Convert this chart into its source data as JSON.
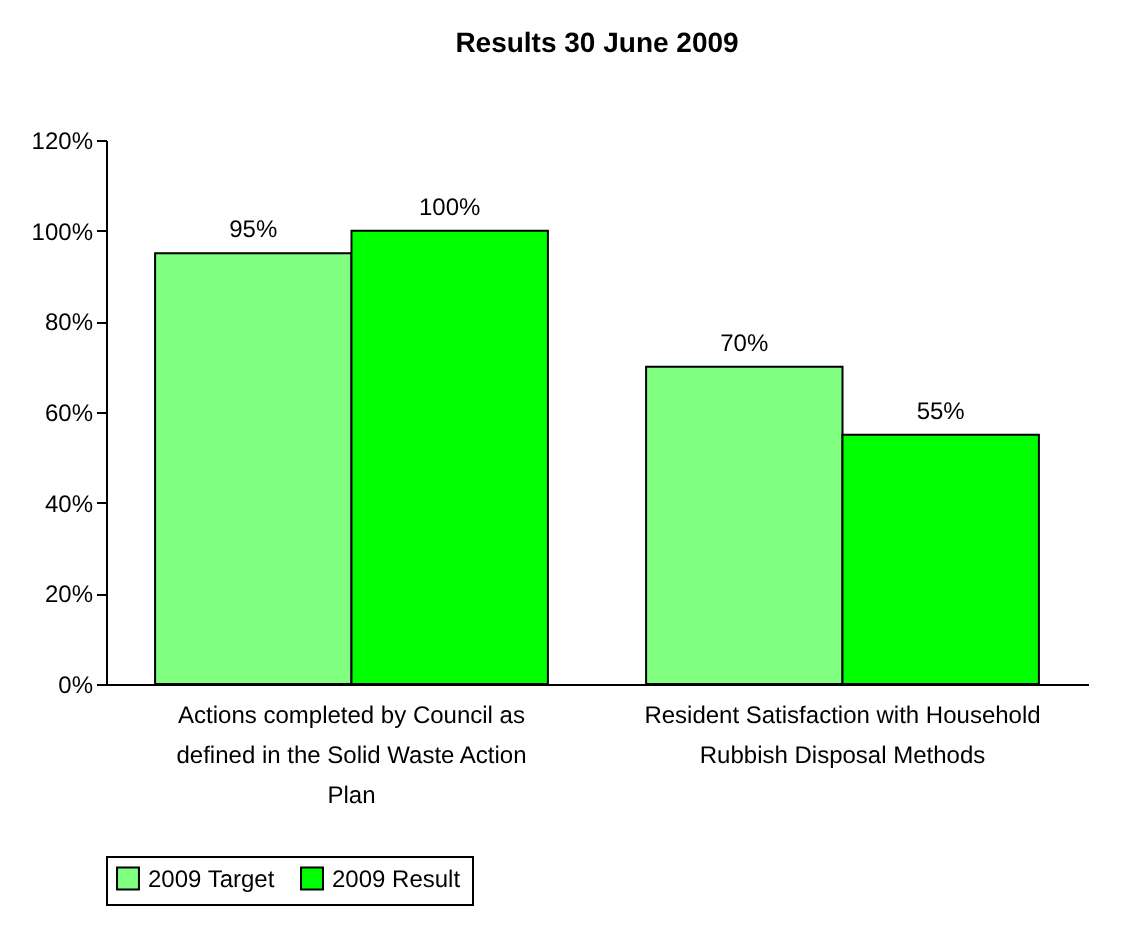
{
  "chart_data": {
    "type": "bar",
    "title": "Results 30 June 2009",
    "categories": [
      "Actions completed by Council as defined in the Solid Waste Action Plan",
      "Resident Satisfaction with Household Rubbish Disposal Methods"
    ],
    "series": [
      {
        "name": "2009 Target",
        "color": "#80ff80",
        "values": [
          95,
          70
        ],
        "value_labels": [
          "95%",
          "70%"
        ]
      },
      {
        "name": "2009 Result",
        "color": "#00ff00",
        "values": [
          100,
          55
        ],
        "value_labels": [
          "100%",
          "55%"
        ]
      }
    ],
    "ylim": [
      0,
      120
    ],
    "yticks": [
      {
        "value": 0,
        "label": "0%"
      },
      {
        "value": 20,
        "label": "20%"
      },
      {
        "value": 40,
        "label": "40%"
      },
      {
        "value": 60,
        "label": "60%"
      },
      {
        "value": 80,
        "label": "80%"
      },
      {
        "value": 100,
        "label": "100%"
      },
      {
        "value": 120,
        "label": "120%"
      }
    ],
    "grid": false,
    "legend": "bottom"
  }
}
